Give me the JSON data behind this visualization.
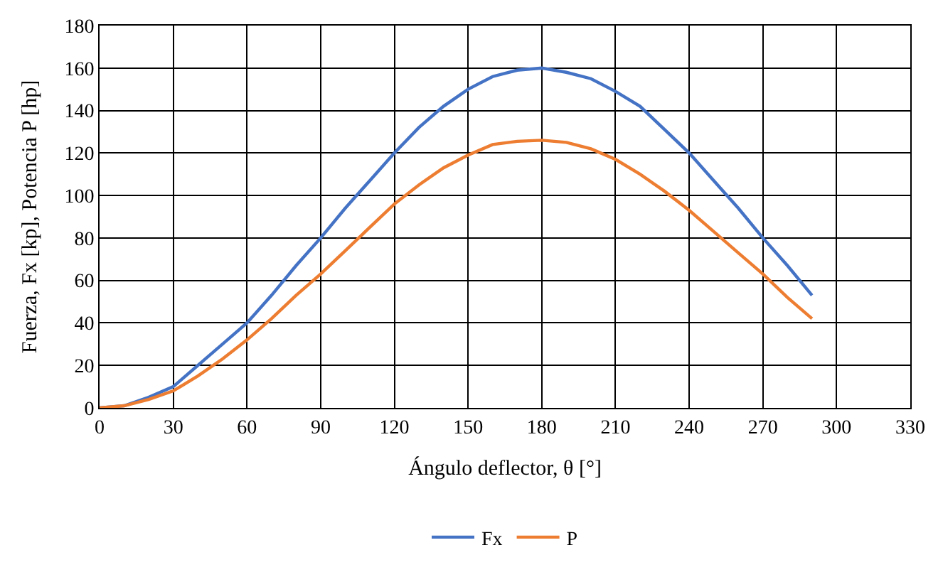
{
  "chart_data": {
    "type": "line",
    "xlabel": "Ángulo deflector, θ [°]",
    "ylabel": "Fuerza, Fx [kp], Potencia P [hp]",
    "x": [
      0,
      10,
      20,
      30,
      40,
      50,
      60,
      70,
      80,
      90,
      100,
      110,
      120,
      130,
      140,
      150,
      160,
      170,
      180,
      190,
      200,
      210,
      220,
      230,
      240,
      250,
      260,
      270,
      280,
      290
    ],
    "series": [
      {
        "name": "Fx",
        "color": "#4472c4",
        "values": [
          0,
          1,
          5,
          10,
          20,
          30,
          40,
          53,
          67,
          80,
          94,
          107,
          120,
          132,
          142,
          150,
          156,
          159,
          160,
          158,
          155,
          149,
          142,
          131,
          120,
          107,
          94,
          80,
          67,
          53
        ]
      },
      {
        "name": "P",
        "color": "#ed7d31",
        "values": [
          0,
          1,
          4,
          8,
          15,
          23,
          32,
          42,
          53,
          63,
          74,
          85,
          96,
          105,
          113,
          119,
          124,
          125.5,
          126,
          125,
          122,
          117,
          110,
          102,
          93,
          83,
          73,
          63,
          52,
          42
        ]
      }
    ],
    "xlim": [
      0,
      330
    ],
    "xticks": [
      0,
      30,
      60,
      90,
      120,
      150,
      180,
      210,
      240,
      270,
      300,
      330
    ],
    "ylim": [
      0,
      180
    ],
    "yticks": [
      0,
      20,
      40,
      60,
      80,
      100,
      120,
      140,
      160,
      180
    ],
    "grid": true,
    "legend": "bottom",
    "marker": "none",
    "line_style": "solid"
  }
}
